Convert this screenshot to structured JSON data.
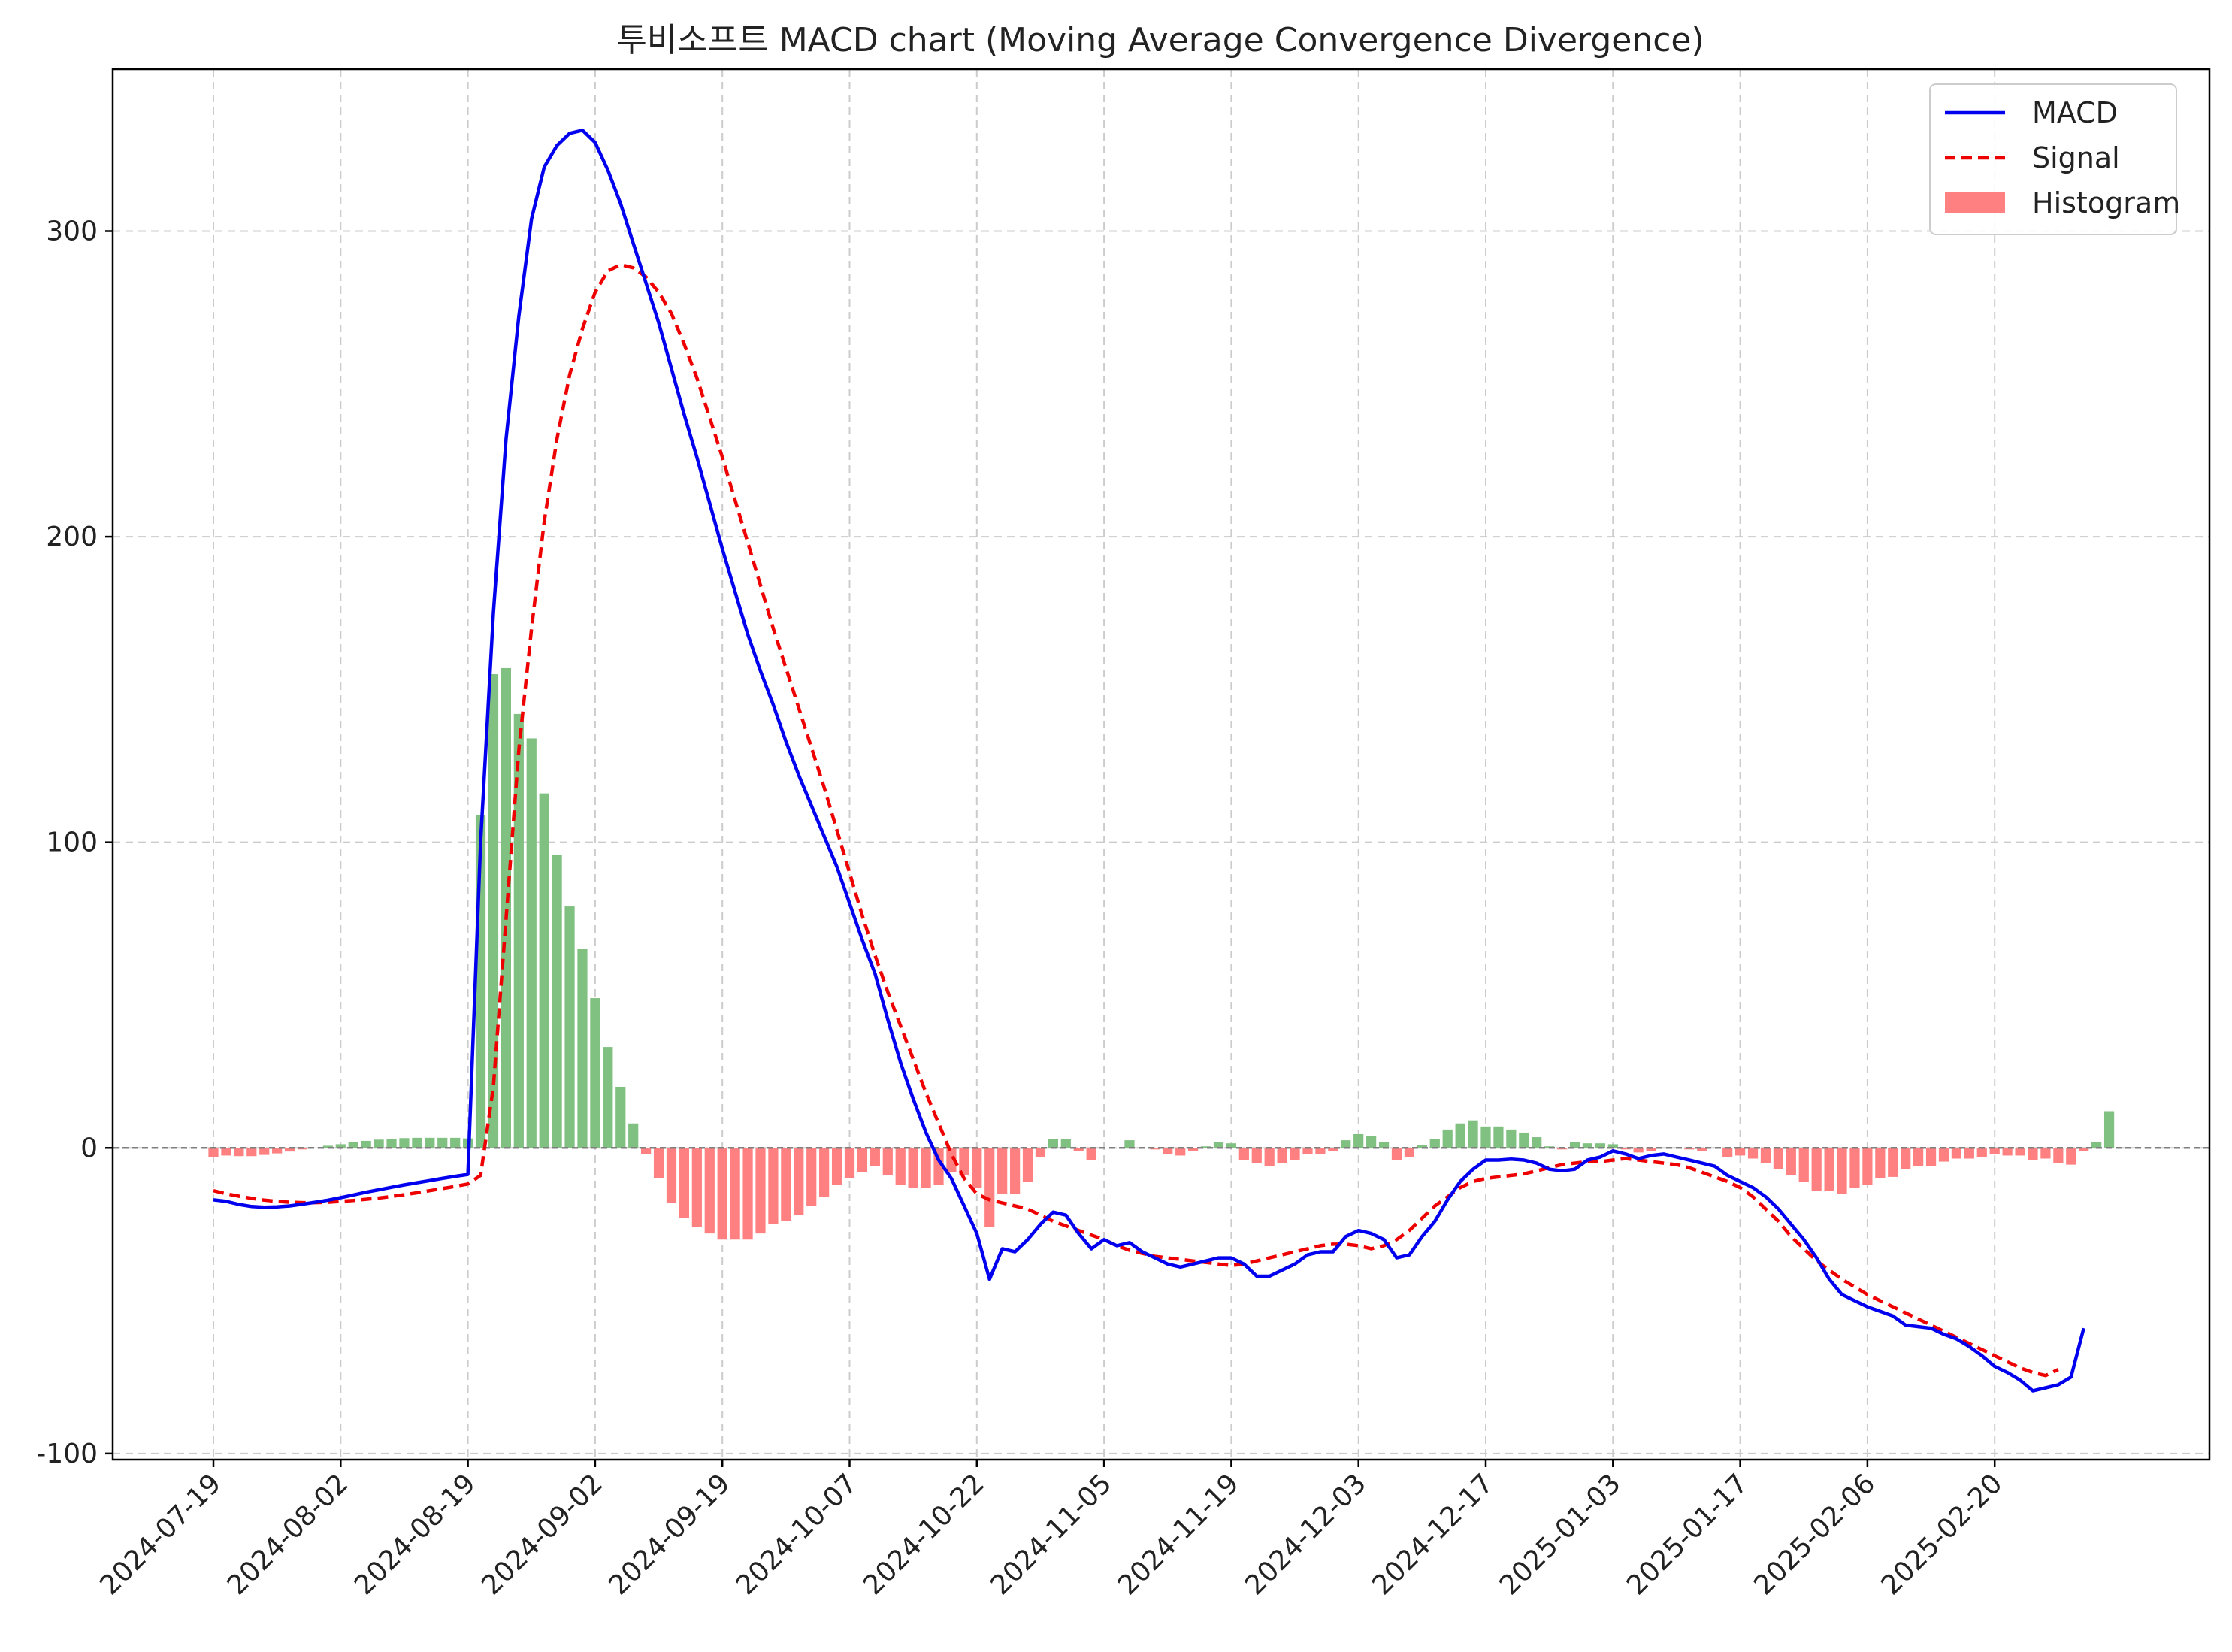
{
  "chart_data": {
    "type": "line",
    "title": "투비소프트 MACD chart (Moving Average Convergence Divergence)",
    "xlabel": "",
    "ylabel": "",
    "ylim": [
      -102,
      353
    ],
    "grid": true,
    "legend_position": "top-right",
    "yticks": [
      -100,
      0,
      100,
      200,
      300
    ],
    "xtick_labels": [
      "2024-07-19",
      "2024-08-02",
      "2024-08-19",
      "2024-09-02",
      "2024-09-19",
      "2024-10-07",
      "2024-10-22",
      "2024-11-05",
      "2024-11-19",
      "2024-12-03",
      "2024-12-17",
      "2025-01-03",
      "2025-01-17",
      "2025-02-06",
      "2025-02-20"
    ],
    "xtick_index": [
      0,
      10,
      20,
      30,
      40,
      50,
      60,
      70,
      80,
      90,
      100,
      110,
      120,
      130,
      140
    ],
    "series": [
      {
        "name": "MACD",
        "color": "#0000ee",
        "style": "solid",
        "values": [
          -17,
          -17.5,
          -18.5,
          -19.2,
          -19.4,
          -19.3,
          -19,
          -18.4,
          -17.8,
          -17.1,
          -16.3,
          -15.4,
          -14.5,
          -13.7,
          -12.9,
          -12.1,
          -11.4,
          -10.7,
          -10,
          -9.3,
          -8.7,
          100,
          175,
          232,
          272,
          304,
          321,
          328,
          332,
          333,
          329,
          320,
          309,
          296,
          283,
          270,
          255,
          240,
          226,
          211,
          196,
          182,
          168,
          156,
          145,
          133,
          122,
          112,
          102,
          92,
          80,
          68,
          57,
          42,
          28,
          16,
          5,
          -4,
          -10,
          -19,
          -28,
          -43,
          -33,
          -34,
          -30,
          -25,
          -21,
          -22,
          -28,
          -33,
          -30,
          -32,
          -31,
          -34,
          -36,
          -38,
          -39,
          -38,
          -37,
          -36,
          -36,
          -38,
          -42,
          -42,
          -40,
          -38,
          -35,
          -34,
          -34,
          -29,
          -27,
          -28,
          -30,
          -36,
          -35,
          -29,
          -24,
          -17,
          -11,
          -7,
          -4,
          -4,
          -3.7,
          -4,
          -5,
          -7,
          -7.5,
          -7,
          -4,
          -3,
          -1,
          -2,
          -3.5,
          -2.5,
          -2,
          -3,
          -4,
          -5,
          -6,
          -9,
          -11,
          -13,
          -16,
          -20,
          -25,
          -30,
          -36,
          -43,
          -48,
          -50,
          -52,
          -53.5,
          -55,
          -58,
          -58.5,
          -59,
          -61,
          -62.5,
          -65,
          -68,
          -71.5,
          -73.5,
          -76,
          -79.5,
          -78.5,
          -77.5,
          -75,
          -59
        ]
      },
      {
        "name": "Signal",
        "color": "#ee0000",
        "style": "dashed",
        "values": [
          -14,
          -15,
          -15.8,
          -16.5,
          -17.1,
          -17.5,
          -17.8,
          -17.9,
          -17.9,
          -17.8,
          -17.5,
          -17.2,
          -16.8,
          -16.4,
          -15.9,
          -15.3,
          -14.7,
          -14,
          -13.3,
          -12.6,
          -11.8,
          -9,
          20,
          75,
          130,
          170,
          205,
          232,
          253,
          268,
          280,
          287,
          289,
          288,
          285,
          280,
          273,
          263,
          252,
          239,
          226,
          212,
          198,
          184,
          170,
          157,
          144,
          131,
          118,
          104,
          90,
          76,
          63,
          51,
          40,
          29,
          18,
          8,
          -2,
          -10,
          -15,
          -17,
          -18,
          -19,
          -20,
          -22,
          -24,
          -25.5,
          -27,
          -28.5,
          -30,
          -32,
          -33.5,
          -34.5,
          -35.5,
          -36,
          -36.5,
          -37,
          -37.5,
          -38,
          -38.5,
          -38,
          -37,
          -36,
          -35,
          -34,
          -33,
          -32,
          -31.5,
          -31.5,
          -32,
          -33,
          -32,
          -30,
          -27,
          -23,
          -19,
          -16,
          -13,
          -11,
          -10,
          -9.5,
          -9,
          -8.5,
          -7.5,
          -6.5,
          -5.5,
          -5,
          -4.5,
          -4.5,
          -4,
          -3.5,
          -4,
          -4.5,
          -5,
          -5.5,
          -6.5,
          -8,
          -9.5,
          -11,
          -13,
          -16,
          -20,
          -24,
          -29,
          -33,
          -37,
          -40,
          -43,
          -45.5,
          -48,
          -50,
          -52,
          -54,
          -56,
          -58,
          -60,
          -62,
          -64,
          -66,
          -68,
          -70,
          -72,
          -73.5,
          -74.5,
          -72.5
        ]
      },
      {
        "name": "Histogram",
        "color": "#ff8080",
        "positive_color": "#80c080",
        "style": "bar",
        "values": [
          -3,
          -2.5,
          -2.7,
          -2.7,
          -2.3,
          -1.8,
          -1.2,
          -0.5,
          0.1,
          0.7,
          1.2,
          1.8,
          2.3,
          2.7,
          3,
          3.2,
          3.3,
          3.3,
          3.3,
          3.3,
          3.1,
          109,
          155,
          157,
          142,
          134,
          116,
          96,
          79,
          65,
          49,
          33,
          20,
          8,
          -2,
          -10,
          -18,
          -23,
          -26,
          -28,
          -30,
          -30,
          -30,
          -28,
          -25,
          -24,
          -22,
          -19,
          -16,
          -12,
          -10,
          -8,
          -6,
          -9,
          -12,
          -13,
          -13,
          -12,
          -8,
          -9,
          -13,
          -26,
          -15,
          -15,
          -11,
          -3,
          3,
          3,
          -1,
          -4,
          0,
          0,
          2.5,
          0,
          -0.5,
          -2,
          -2.5,
          -1,
          0.5,
          2,
          1.5,
          -4,
          -5,
          -6,
          -5,
          -4,
          -2,
          -2,
          -1,
          2.5,
          4.5,
          4,
          2,
          -4,
          -3,
          1,
          3,
          6,
          8,
          9,
          7,
          7,
          6,
          5,
          3.5,
          0.5,
          -0.5,
          2,
          1.5,
          1.5,
          1.2,
          -0.5,
          -1.5,
          -1,
          0,
          0,
          -0.5,
          -1,
          0,
          -3,
          -2.5,
          -3.5,
          -5,
          -7,
          -9,
          -11,
          -14,
          -14,
          -15,
          -13,
          -12,
          -10,
          -9.5,
          -7,
          -6,
          -6,
          -4.5,
          -3.5,
          -3.5,
          -3,
          -2,
          -2.5,
          -2.5,
          -4,
          -3.5,
          -5,
          -5.5,
          -1,
          2,
          12
        ]
      }
    ],
    "colors": {
      "grid": "#cccccc",
      "zero_line": "#808080",
      "axis": "#000000"
    }
  }
}
